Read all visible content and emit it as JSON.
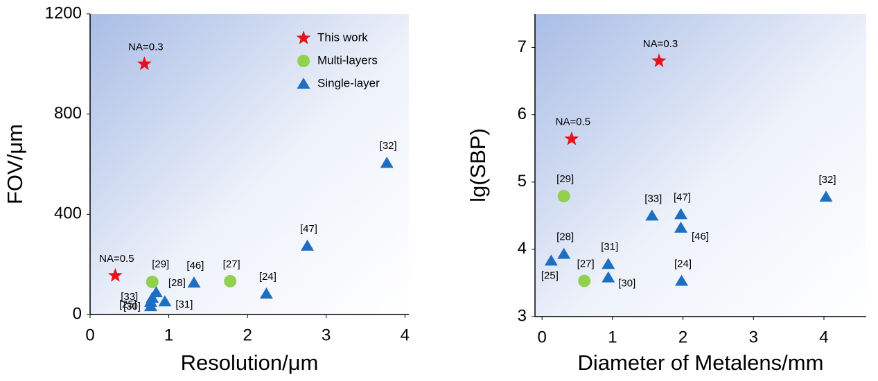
{
  "chart_data": [
    {
      "type": "scatter",
      "xlabel": "Resolution/μm",
      "ylabel": "FOV/μm",
      "xlim": [
        0,
        4.05
      ],
      "ylim": [
        0,
        1200
      ],
      "xticks": [
        0,
        1,
        2,
        3,
        4
      ],
      "yticks": [
        0,
        400,
        800,
        1200
      ],
      "legend": "upper right",
      "series": [
        {
          "name": "This work",
          "color": "#e8101a",
          "marker": "star",
          "x": [
            0.69,
            0.32
          ],
          "y": [
            1000,
            155
          ],
          "labels": [
            "NA=0.3",
            "NA=0.5"
          ]
        },
        {
          "name": "Multi-layers",
          "color": "#92d050",
          "marker": "circle",
          "x": [
            0.79,
            1.78
          ],
          "y": [
            130,
            133
          ],
          "labels": [
            "[29]",
            "[27]"
          ]
        },
        {
          "name": "Single-layer",
          "color": "#1f6fc0",
          "marker": "triangle",
          "x": [
            3.77,
            2.76,
            2.24,
            1.32,
            0.84,
            0.79,
            0.77,
            0.77,
            0.95
          ],
          "y": [
            605,
            274,
            83,
            127,
            88,
            66,
            50,
            33,
            52
          ],
          "labels": [
            "[32]",
            "[47]",
            "[24]",
            "[46]",
            "[28]",
            "[33]",
            "[25]",
            "[30]",
            "[31]"
          ]
        }
      ]
    },
    {
      "type": "scatter",
      "xlabel": "Diameter of Metalens/mm",
      "ylabel": "lg(SBP)",
      "xlim": [
        -0.1,
        4.6
      ],
      "ylim": [
        3,
        7.5
      ],
      "xticks": [
        0,
        1,
        2,
        3,
        4
      ],
      "yticks": [
        3,
        4,
        5,
        6,
        7
      ],
      "series": [
        {
          "name": "This work",
          "color": "#e8101a",
          "marker": "star",
          "x": [
            1.66,
            0.42
          ],
          "y": [
            6.8,
            5.64
          ],
          "labels": [
            "NA=0.3",
            "NA=0.5"
          ]
        },
        {
          "name": "Multi-layers",
          "color": "#92d050",
          "marker": "circle",
          "x": [
            0.31,
            0.6
          ],
          "y": [
            4.79,
            3.53
          ],
          "labels": [
            "[29]",
            "[27]"
          ]
        },
        {
          "name": "Single-layer",
          "color": "#1f6fc0",
          "marker": "triangle",
          "x": [
            4.03,
            1.97,
            1.56,
            1.97,
            0.31,
            0.94,
            0.13,
            0.94,
            1.98
          ],
          "y": [
            4.78,
            4.52,
            4.5,
            4.32,
            3.93,
            3.78,
            3.83,
            3.58,
            3.53
          ],
          "labels": [
            "[32]",
            "[47]",
            "[33]",
            "[46]",
            "[28]",
            "[31]",
            "[25]",
            "[30]",
            "[24]"
          ]
        }
      ]
    }
  ]
}
